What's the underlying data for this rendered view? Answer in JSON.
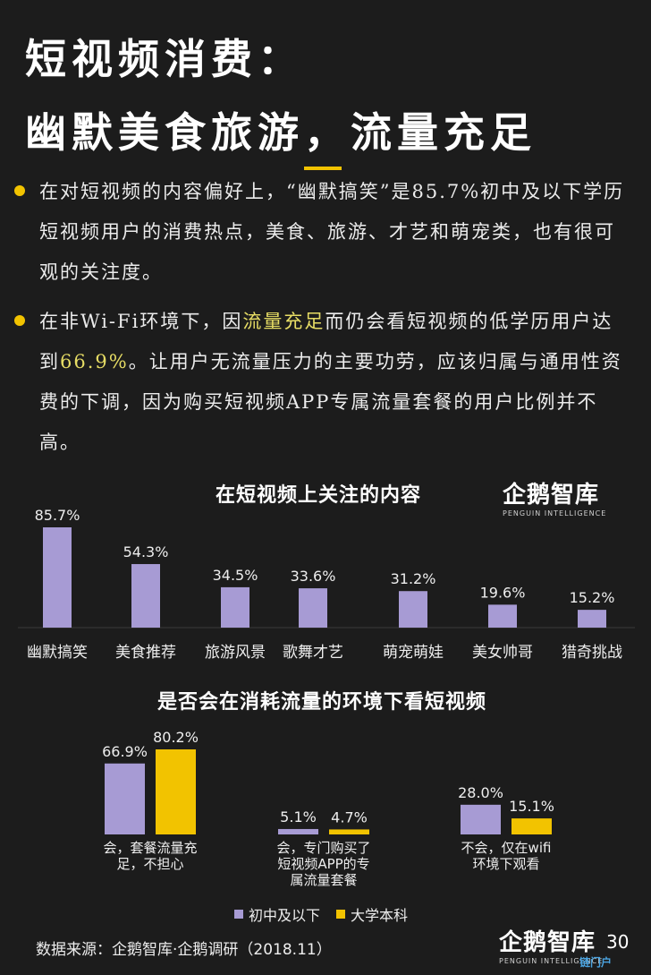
{
  "header": {
    "title_line1": "短视频消费：",
    "title_line2": "幽默美食旅游，流量充足"
  },
  "bullets": {
    "b1": "在对短视频的内容偏好上，“幽默搞笑”是85.7%初中及以下学历短视频用户的消费热点，美食、旅游、才艺和萌宠类，也有很可观的关注度。",
    "b2_part1": "在非Wi-Fi环境下，因",
    "b2_highlight1": "流量充足",
    "b2_part2": "而仍会看短视频的低学历用户达到",
    "b2_highlight2": "66.9%",
    "b2_part3": "。让用户无流量压力的主要功劳，应该归属与通用性资费的下调，因为购买短视频APP专属流量套餐的用户比例并不高。"
  },
  "logo": {
    "cn": "企鹅智库",
    "en": "PENGUIN INTELLIGENCE"
  },
  "chart_data": [
    {
      "type": "bar",
      "title": "在短视频上关注的内容",
      "categories": [
        "幽默搞笑",
        "美食推荐",
        "旅游风景",
        "歌舞才艺",
        "萌宠萌娃",
        "美女帅哥",
        "猎奇挑战"
      ],
      "values": [
        85.7,
        54.3,
        34.5,
        33.6,
        31.2,
        19.6,
        15.2
      ],
      "value_labels": [
        "85.7%",
        "54.3%",
        "34.5%",
        "33.6%",
        "31.2%",
        "19.6%",
        "15.2%"
      ],
      "bar_color": "#a79bd4",
      "ylim": [
        0,
        100
      ]
    },
    {
      "type": "bar",
      "title": "是否会在消耗流量的环境下看短视频",
      "categories": [
        "会，套餐流量充足，不担心",
        "会，专门购买了短视频APP的专属流量套餐",
        "不会，仅在wifi环境下观看"
      ],
      "category_lines": [
        [
          "会，套餐流量充",
          "足，不担心"
        ],
        [
          "会，专门购买了",
          "短视频APP的专",
          "属流量套餐"
        ],
        [
          "不会，仅在wifi",
          "环境下观看"
        ]
      ],
      "series": [
        {
          "name": "初中及以下",
          "values": [
            66.9,
            5.1,
            28.0
          ],
          "labels": [
            "66.9%",
            "5.1%",
            "28.0%"
          ],
          "color": "#a79bd4"
        },
        {
          "name": "大学本科",
          "values": [
            80.2,
            4.7,
            15.1
          ],
          "labels": [
            "80.2%",
            "4.7%",
            "15.1%"
          ],
          "color": "#f2c300"
        }
      ],
      "legend": "bottom",
      "ylim": [
        0,
        100
      ]
    }
  ],
  "footer": {
    "source": "数据来源：企鹅智库·企鹅调研（2018.11）",
    "page_number": "30",
    "watermark": "链门户"
  }
}
